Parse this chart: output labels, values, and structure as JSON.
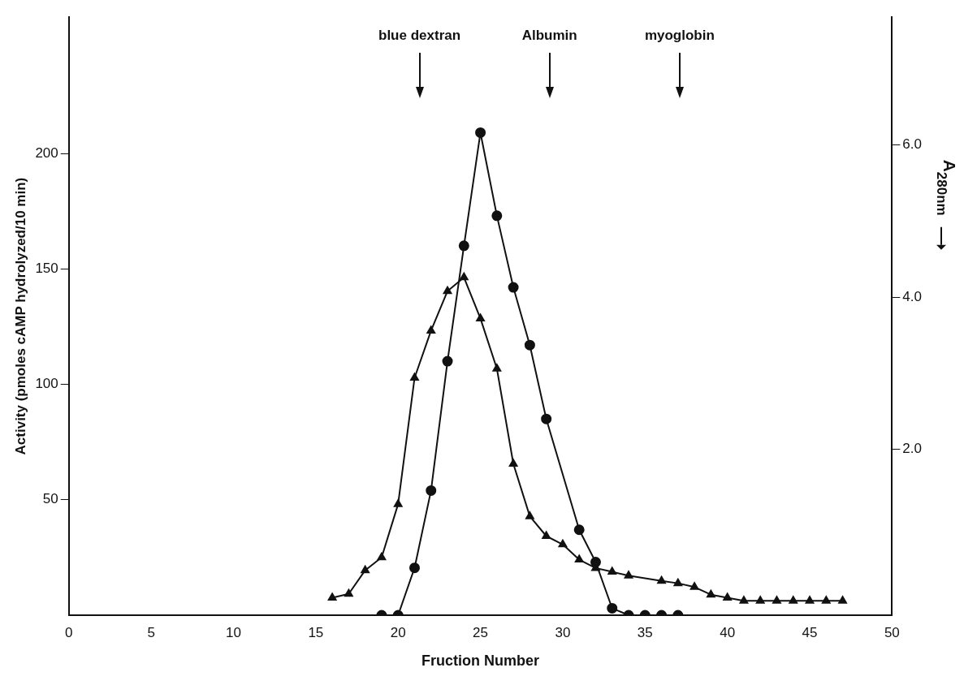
{
  "chart_data": {
    "type": "line",
    "xlabel": "Fruction Number",
    "ylabel": "Activity (pmoles cAMP hydrolyzed/10 min)",
    "y2label": "A$_{280nm}$",
    "xlim": [
      0,
      50
    ],
    "xticks": [
      0,
      5,
      10,
      15,
      20,
      25,
      30,
      35,
      40,
      45,
      50
    ],
    "ylim": [
      0,
      259
    ],
    "yticks": [
      50,
      100,
      150,
      200
    ],
    "y2lim": [
      -0.18,
      7.68
    ],
    "y2ticks": [
      {
        "value": 2,
        "label": "2.0"
      },
      {
        "value": 4,
        "label": "4.0"
      },
      {
        "value": 6,
        "label": "6.0"
      }
    ],
    "grid": false,
    "legend": false,
    "line_style": "solid",
    "series": [
      {
        "color": "#111111",
        "marker": "circle",
        "x": [
          19,
          20,
          21,
          22,
          23,
          24,
          25,
          26,
          27,
          28,
          29,
          31,
          32,
          33,
          34,
          35,
          36,
          37
        ],
        "values": [
          0,
          0,
          20.5,
          54,
          110,
          160,
          209,
          173,
          142,
          117,
          85,
          37,
          23,
          3,
          0,
          0,
          0,
          0
        ]
      },
      {
        "color": "#111111",
        "marker": "triangle",
        "axis": "y2",
        "x": [
          16,
          17,
          18,
          19,
          20,
          21,
          22,
          23,
          24,
          25,
          26,
          27,
          28,
          29,
          30,
          31,
          32,
          33,
          34,
          36,
          37,
          38,
          39,
          40,
          41,
          42,
          43,
          44,
          45,
          46,
          47
        ],
        "values": [
          0.05,
          0.1,
          0.41,
          0.58,
          1.28,
          2.94,
          3.56,
          4.08,
          4.26,
          3.72,
          3.06,
          1.81,
          1.12,
          0.86,
          0.75,
          0.55,
          0.44,
          0.39,
          0.34,
          0.27,
          0.24,
          0.19,
          0.09,
          0.05,
          0.01,
          0.01,
          0.01,
          0.01,
          0.01,
          0.01,
          0.01
        ]
      }
    ],
    "ref_lines": [
      {
        "axis": "x",
        "value": 21.3,
        "label": "blue dextran"
      },
      {
        "axis": "x",
        "value": 29.2,
        "label": "Albumin"
      },
      {
        "axis": "x",
        "value": 37.1,
        "label": "myoglobin"
      }
    ]
  }
}
